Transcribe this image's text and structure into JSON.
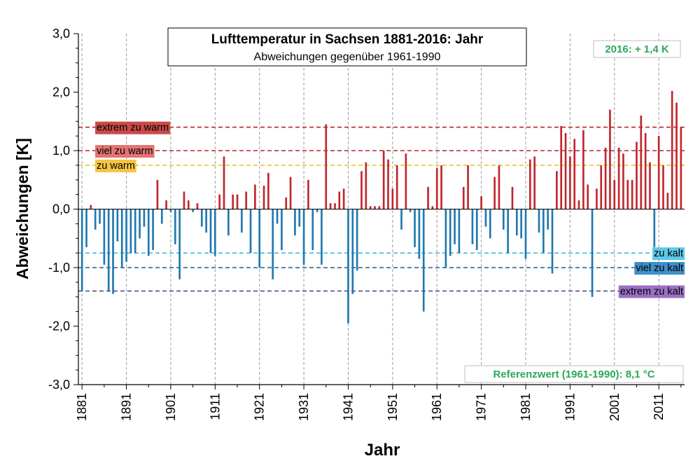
{
  "chart_data": {
    "type": "bar",
    "title": "Lufttemperatur in Sachsen 1881-2016:  Jahr",
    "subtitle": "Abweichungen  gegenüber  1961-1990",
    "xlabel": "Jahr",
    "ylabel": "Abweichungen [K]",
    "ylim": [
      -3.0,
      3.0
    ],
    "y_ticks": [
      "3,0",
      "2,0",
      "1,0",
      "0,0",
      "-1,0",
      "-2,0",
      "-3,0"
    ],
    "y_tick_values": [
      3,
      2,
      1,
      0,
      -1,
      -2,
      -3
    ],
    "x_ticks": [
      "1881",
      "1891",
      "1901",
      "1911",
      "1921",
      "1931",
      "1941",
      "1951",
      "1961",
      "1971",
      "1981",
      "1991",
      "2001",
      "2011"
    ],
    "x_tick_values": [
      1881,
      1891,
      1901,
      1911,
      1921,
      1931,
      1941,
      1951,
      1961,
      1971,
      1981,
      1991,
      2001,
      2011
    ],
    "xlim": [
      1881,
      2016
    ],
    "grid": "vertical dashed at decades",
    "warm_color": "#c0272d",
    "cold_color": "#1f78b0",
    "years": [
      1881,
      1882,
      1883,
      1884,
      1885,
      1886,
      1887,
      1888,
      1889,
      1890,
      1891,
      1892,
      1893,
      1894,
      1895,
      1896,
      1897,
      1898,
      1899,
      1900,
      1901,
      1902,
      1903,
      1904,
      1905,
      1906,
      1907,
      1908,
      1909,
      1910,
      1911,
      1912,
      1913,
      1914,
      1915,
      1916,
      1917,
      1918,
      1919,
      1920,
      1921,
      1922,
      1923,
      1924,
      1925,
      1926,
      1927,
      1928,
      1929,
      1930,
      1931,
      1932,
      1933,
      1934,
      1935,
      1936,
      1937,
      1938,
      1939,
      1940,
      1941,
      1942,
      1943,
      1944,
      1945,
      1946,
      1947,
      1948,
      1949,
      1950,
      1951,
      1952,
      1953,
      1954,
      1955,
      1956,
      1957,
      1958,
      1959,
      1960,
      1961,
      1962,
      1963,
      1964,
      1965,
      1966,
      1967,
      1968,
      1969,
      1970,
      1971,
      1972,
      1973,
      1974,
      1975,
      1976,
      1977,
      1978,
      1979,
      1980,
      1981,
      1982,
      1983,
      1984,
      1985,
      1986,
      1987,
      1988,
      1989,
      1990,
      1991,
      1992,
      1993,
      1994,
      1995,
      1996,
      1997,
      1998,
      1999,
      2000,
      2001,
      2002,
      2003,
      2004,
      2005,
      2006,
      2007,
      2008,
      2009,
      2010,
      2011,
      2012,
      2013,
      2014,
      2015,
      2016
    ],
    "values": [
      -1.4,
      -0.65,
      0.07,
      -0.35,
      -0.25,
      -0.95,
      -1.4,
      -1.45,
      -0.55,
      -1.0,
      -0.9,
      -0.75,
      -0.75,
      -0.5,
      -0.3,
      -0.8,
      -0.7,
      0.5,
      -0.25,
      0.15,
      -0.05,
      -0.6,
      -1.2,
      0.3,
      0.15,
      -0.05,
      0.1,
      -0.3,
      -0.4,
      -0.75,
      -0.8,
      0.25,
      0.9,
      -0.45,
      0.25,
      0.25,
      -0.4,
      0.3,
      -0.75,
      0.42,
      -1.0,
      0.4,
      0.62,
      -1.2,
      -0.25,
      -0.7,
      0.2,
      0.55,
      -0.45,
      -0.3,
      -0.95,
      0.5,
      -0.7,
      -0.05,
      -0.95,
      1.45,
      0.1,
      0.1,
      0.3,
      0.35,
      -1.95,
      -1.45,
      -1.05,
      0.65,
      0.8,
      0.05,
      0.05,
      0.05,
      1.0,
      0.85,
      0.35,
      0.75,
      -0.35,
      0.95,
      -0.05,
      -0.65,
      -0.85,
      -1.75,
      0.38,
      0.05,
      0.7,
      0.75,
      -1.0,
      -0.8,
      -0.6,
      -0.75,
      0.38,
      0.75,
      -0.6,
      -0.7,
      0.22,
      -0.3,
      -0.5,
      0.55,
      0.75,
      -0.35,
      -0.75,
      0.38,
      -0.45,
      -0.5,
      -0.85,
      0.85,
      0.9,
      -0.4,
      -0.75,
      -0.35,
      -1.1,
      0.65,
      1.42,
      1.3,
      0.9,
      1.2,
      0.15,
      1.35,
      0.42,
      -1.5,
      0.35,
      0.75,
      1.05,
      1.7,
      0.5,
      1.05,
      0.95,
      0.5,
      0.5,
      1.15,
      1.6,
      1.3,
      0.8,
      -0.65,
      1.25,
      0.75,
      0.28,
      2.02,
      1.82,
      1.4
    ]
  },
  "thresholds": [
    {
      "label": "extrem zu warm",
      "value": 1.4,
      "color": "#b3262c",
      "label_bg": "#c94a4a",
      "side": "left"
    },
    {
      "label": "viel zu warm",
      "value": 1.0,
      "color": "#b3262c",
      "label_bg": "#e57373",
      "side": "left"
    },
    {
      "label": "zu warm",
      "value": 0.75,
      "color": "#e8c21a",
      "label_bg": "#f5c542",
      "side": "left"
    },
    {
      "label": "zu kalt",
      "value": -0.75,
      "color": "#36b7d4",
      "label_bg": "#5ec8e6",
      "side": "right"
    },
    {
      "label": "viel zu kalt",
      "value": -1.0,
      "color": "#1f5f8b",
      "label_bg": "#3f8fc8",
      "side": "right"
    },
    {
      "label": "extrem zu kalt",
      "value": -1.4,
      "color": "#5a4a86",
      "label_bg": "#9a70c4",
      "side": "right"
    }
  ],
  "annotations": {
    "year_2016": "2016: + 1,4 K",
    "reference": "Referenzwert (1961-1990): 8,1 °C",
    "annotation_color": "#2aa85a"
  }
}
